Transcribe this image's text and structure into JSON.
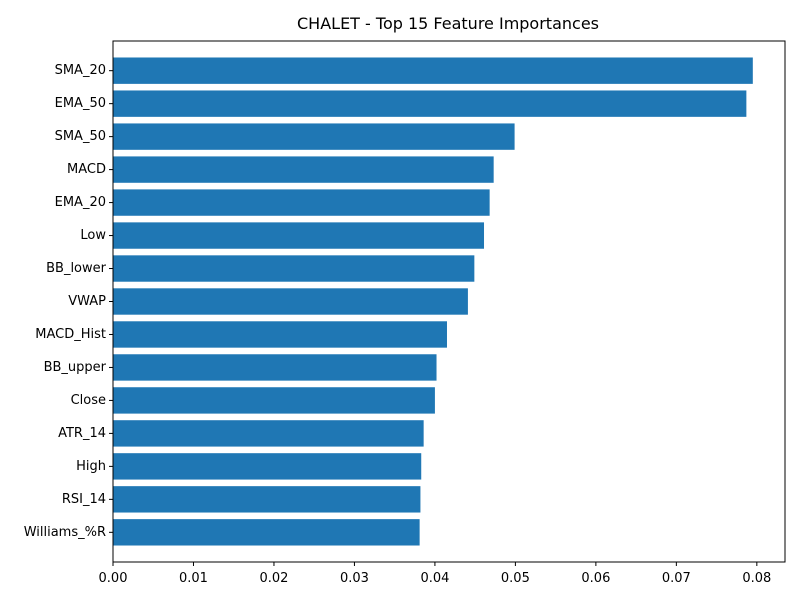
{
  "chart_data": {
    "type": "bar",
    "orientation": "horizontal",
    "title": "CHALET - Top 15 Feature Importances",
    "xlabel": "",
    "ylabel": "",
    "xlim": [
      0,
      0.0835
    ],
    "x_ticks": [
      "0.00",
      "0.01",
      "0.02",
      "0.03",
      "0.04",
      "0.05",
      "0.06",
      "0.07",
      "0.08"
    ],
    "x_tick_values": [
      0,
      0.01,
      0.02,
      0.03,
      0.04,
      0.05,
      0.06,
      0.07,
      0.08
    ],
    "grid": false,
    "bar_color": "#1f77b4",
    "categories": [
      "SMA_20",
      "EMA_50",
      "SMA_50",
      "MACD",
      "EMA_20",
      "Low",
      "BB_lower",
      "VWAP",
      "MACD_Hist",
      "BB_upper",
      "Close",
      "ATR_14",
      "High",
      "RSI_14",
      "Williams_%R"
    ],
    "values": [
      0.0795,
      0.0787,
      0.0499,
      0.0473,
      0.0468,
      0.0461,
      0.0449,
      0.0441,
      0.0415,
      0.0402,
      0.04,
      0.0386,
      0.0383,
      0.0382,
      0.0381
    ]
  }
}
